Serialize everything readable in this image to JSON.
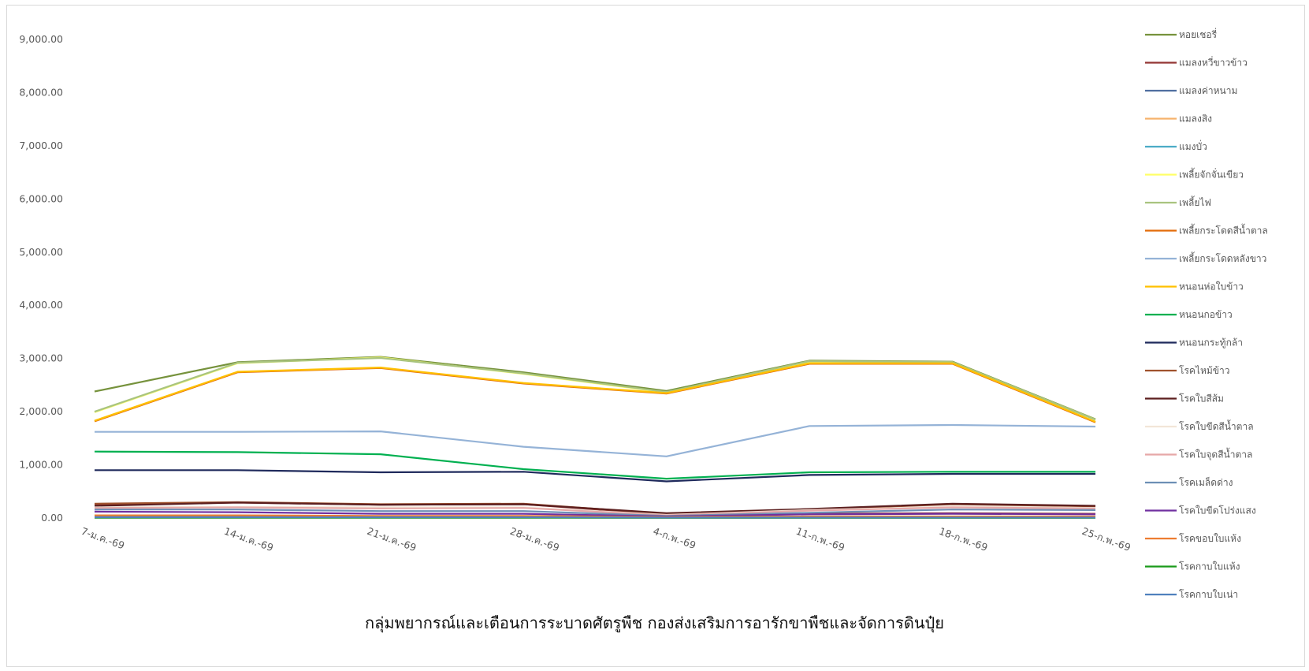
{
  "chart_data": {
    "type": "line",
    "categories": [
      "7-ม.ค.-69",
      "14-ม.ค.-69",
      "21-ม.ค.-69",
      "28-ม.ค.-69",
      "4-ก.พ.-69",
      "11-ก.พ.-69",
      "18-ก.พ.-69",
      "25-ก.พ.-69"
    ],
    "y_ticks": [
      "0.00",
      "1,000.00",
      "2,000.00",
      "3,000.00",
      "4,000.00",
      "5,000.00",
      "6,000.00",
      "7,000.00",
      "8,000.00",
      "9,000.00"
    ],
    "ylim": [
      0,
      9000
    ],
    "legend_position": "right",
    "grid": false,
    "series": [
      {
        "name": "หอยเชอรี่",
        "color": "#76923c",
        "values": [
          2380,
          2930,
          3030,
          2740,
          2390,
          2960,
          2940,
          1860
        ]
      },
      {
        "name": "แมลงหวี่ขาวข้าว",
        "color": "#943634",
        "values": [
          250,
          290,
          250,
          260,
          70,
          80,
          90,
          80
        ]
      },
      {
        "name": "แมลงค่าหนาม",
        "color": "#4f6fa0",
        "values": [
          10,
          10,
          10,
          10,
          5,
          5,
          5,
          5
        ]
      },
      {
        "name": "แมลงสิง",
        "color": "#f6b26b",
        "values": [
          20,
          20,
          20,
          20,
          10,
          10,
          10,
          10
        ]
      },
      {
        "name": "แมงบั่ว",
        "color": "#4bacc6",
        "values": [
          30,
          30,
          30,
          30,
          15,
          15,
          15,
          15
        ]
      },
      {
        "name": "เพลี้ยจักจั่นเขียว",
        "color": "#ffff66",
        "values": [
          1990,
          2910,
          3020,
          2710,
          2360,
          2940,
          2930,
          1850
        ]
      },
      {
        "name": "เพลี้ยไฟ",
        "color": "#a9c47f",
        "values": [
          2000,
          2920,
          3010,
          2720,
          2370,
          2950,
          2930,
          1850
        ]
      },
      {
        "name": "เพลี้ยกระโดดสีน้ำตาล",
        "color": "#e36c09",
        "values": [
          1820,
          2740,
          2820,
          2530,
          2340,
          2900,
          2900,
          1800
        ]
      },
      {
        "name": "เพลี้ยกระโดดหลังขาว",
        "color": "#95b3d7",
        "values": [
          1620,
          1620,
          1630,
          1340,
          1160,
          1730,
          1750,
          1720
        ]
      },
      {
        "name": "หนอนห่อใบข้าว",
        "color": "#ffc000",
        "values": [
          1830,
          2750,
          2830,
          2540,
          2350,
          2910,
          2910,
          1810
        ]
      },
      {
        "name": "หนอนกอข้าว",
        "color": "#00b050",
        "values": [
          1250,
          1240,
          1200,
          920,
          740,
          860,
          870,
          870
        ]
      },
      {
        "name": "หนอนกระทู้กล้า",
        "color": "#1f2a5c",
        "values": [
          900,
          900,
          860,
          870,
          690,
          810,
          830,
          830
        ]
      },
      {
        "name": "โรคไหม้ข้าว",
        "color": "#a0522d",
        "values": [
          270,
          300,
          260,
          270,
          80,
          160,
          260,
          220
        ]
      },
      {
        "name": "โรคใบสีส้ม",
        "color": "#5c1f1f",
        "values": [
          230,
          290,
          250,
          260,
          90,
          170,
          270,
          230
        ]
      },
      {
        "name": "โรคใบขีดสีน้ำตาล",
        "color": "#f2e6d8",
        "values": [
          200,
          210,
          200,
          200,
          60,
          150,
          210,
          190
        ]
      },
      {
        "name": "โรคใบจุดสีน้ำตาล",
        "color": "#e6a8a8",
        "values": [
          190,
          200,
          180,
          190,
          50,
          140,
          200,
          180
        ]
      },
      {
        "name": "โรคเมล็ดด่าง",
        "color": "#6d8fb5",
        "values": [
          160,
          160,
          130,
          130,
          40,
          100,
          160,
          150
        ]
      },
      {
        "name": "โรคใบขีดโปร่งแสง",
        "color": "#7030a0",
        "values": [
          120,
          110,
          80,
          80,
          30,
          70,
          80,
          70
        ]
      },
      {
        "name": "โรคขอบใบแห้ง",
        "color": "#ed7d31",
        "values": [
          50,
          50,
          40,
          40,
          20,
          30,
          30,
          30
        ]
      },
      {
        "name": "โรคกาบใบแห้ง",
        "color": "#1a9a1a",
        "values": [
          5,
          5,
          5,
          5,
          5,
          5,
          5,
          5
        ]
      },
      {
        "name": "โรคกาบใบเน่า",
        "color": "#4f81bd",
        "values": [
          15,
          15,
          15,
          15,
          10,
          10,
          10,
          10
        ]
      }
    ]
  },
  "footer": {
    "text": "กลุ่มพยากรณ์และเตือนการระบาดศัตรูพืช กองส่งเสริมการอารักขาพืชและจัดการดินปุ๋ย"
  }
}
